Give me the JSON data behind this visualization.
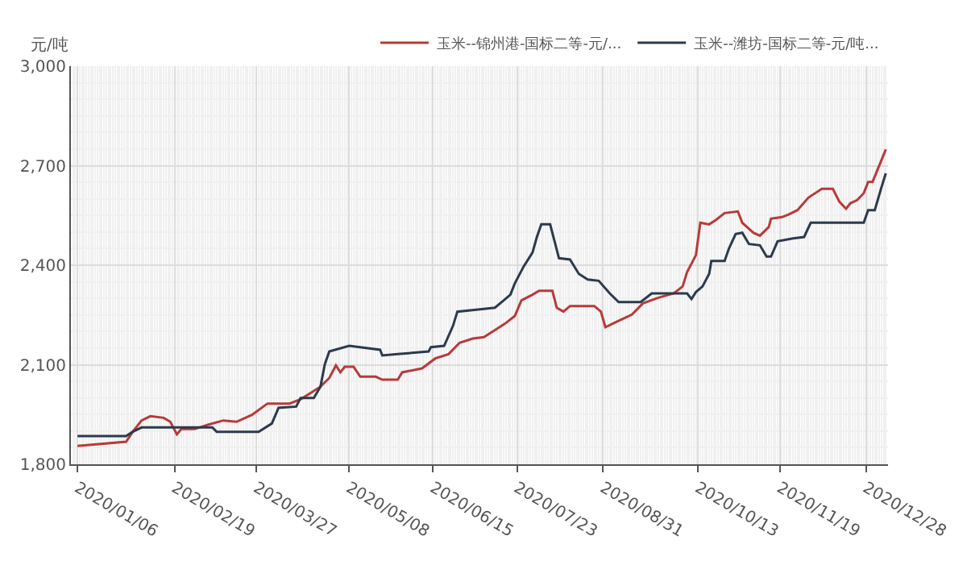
{
  "chart_data": {
    "type": "line",
    "ylabel": "元/吨",
    "xlim": [
      "2020-01-03",
      "2021-01-07"
    ],
    "xticks": [
      {
        "value": "2020-01-06",
        "label": "2020/01/06"
      },
      {
        "value": "2020-02-19",
        "label": "2020/02/19"
      },
      {
        "value": "2020-03-27",
        "label": "2020/03/27"
      },
      {
        "value": "2020-05-08",
        "label": "2020/05/08"
      },
      {
        "value": "2020-06-15",
        "label": "2020/06/15"
      },
      {
        "value": "2020-07-23",
        "label": "2020/07/23"
      },
      {
        "value": "2020-08-31",
        "label": "2020/08/31"
      },
      {
        "value": "2020-10-13",
        "label": "2020/10/13"
      },
      {
        "value": "2020-11-19",
        "label": "2020/11/19"
      },
      {
        "value": "2020-12-28",
        "label": "2020/12/28"
      }
    ],
    "ylim": [
      1800,
      3000
    ],
    "yticks": [
      {
        "value": 1800,
        "label": "1,800"
      },
      {
        "value": 2100,
        "label": "2,100"
      },
      {
        "value": 2400,
        "label": "2,400"
      },
      {
        "value": 2700,
        "label": "2,700"
      },
      {
        "value": 3000,
        "label": "3,000"
      }
    ],
    "grid": true,
    "legend": "top right",
    "series": [
      {
        "name": "玉米--锦州港-国标二等-元/...",
        "color": "#b83a3a",
        "x": [
          "2020-01-06",
          "2020-01-28",
          "2020-01-31",
          "2020-02-04",
          "2020-02-08",
          "2020-02-14",
          "2020-02-17",
          "2020-02-20",
          "2020-02-22",
          "2020-02-28",
          "2020-03-05",
          "2020-03-12",
          "2020-03-18",
          "2020-03-25",
          "2020-04-01",
          "2020-04-11",
          "2020-04-16",
          "2020-04-21",
          "2020-04-25",
          "2020-04-29",
          "2020-05-02",
          "2020-05-04",
          "2020-05-06",
          "2020-05-10",
          "2020-05-13",
          "2020-05-20",
          "2020-05-23",
          "2020-05-30",
          "2020-06-01",
          "2020-06-10",
          "2020-06-16",
          "2020-06-22",
          "2020-06-27",
          "2020-07-03",
          "2020-07-08",
          "2020-07-16",
          "2020-07-18",
          "2020-07-22",
          "2020-07-25",
          "2020-07-30",
          "2020-08-02",
          "2020-08-08",
          "2020-08-10",
          "2020-08-13",
          "2020-08-16",
          "2020-08-27",
          "2020-08-30",
          "2020-09-01",
          "2020-09-05",
          "2020-09-13",
          "2020-09-18",
          "2020-09-25",
          "2020-10-02",
          "2020-10-06",
          "2020-10-08",
          "2020-10-12",
          "2020-10-14",
          "2020-10-18",
          "2020-10-21",
          "2020-10-25",
          "2020-10-31",
          "2020-11-02",
          "2020-11-07",
          "2020-11-10",
          "2020-11-14",
          "2020-11-15",
          "2020-11-20",
          "2020-11-23",
          "2020-11-27",
          "2020-12-02",
          "2020-12-08",
          "2020-12-13",
          "2020-12-16",
          "2020-12-19",
          "2020-12-21",
          "2020-12-24",
          "2020-12-27",
          "2020-12-29",
          "2020-12-31",
          "2021-01-06"
        ],
        "values": [
          1855,
          1868,
          1898,
          1932,
          1945,
          1940,
          1928,
          1890,
          1906,
          1906,
          1919,
          1932,
          1928,
          1949,
          1983,
          1983,
          1996,
          2017,
          2034,
          2060,
          2098,
          2077,
          2094,
          2094,
          2064,
          2064,
          2055,
          2055,
          2077,
          2089,
          2119,
          2132,
          2166,
          2179,
          2183,
          2217,
          2226,
          2247,
          2294,
          2311,
          2323,
          2323,
          2272,
          2260,
          2277,
          2277,
          2260,
          2213,
          2226,
          2251,
          2285,
          2302,
          2315,
          2336,
          2379,
          2430,
          2528,
          2523,
          2536,
          2557,
          2562,
          2528,
          2498,
          2489,
          2515,
          2540,
          2545,
          2553,
          2566,
          2604,
          2630,
          2630,
          2591,
          2570,
          2587,
          2596,
          2617,
          2651,
          2651,
          2749
        ]
      },
      {
        "name": "玉米--潍坊-国标二等-元/吨...",
        "color": "#2c3a4c",
        "x": [
          "2020-01-06",
          "2020-01-28",
          "2020-01-31",
          "2020-02-04",
          "2020-03-07",
          "2020-03-09",
          "2020-03-28",
          "2020-04-03",
          "2020-04-06",
          "2020-04-14",
          "2020-04-16",
          "2020-04-22",
          "2020-04-25",
          "2020-04-27",
          "2020-04-29",
          "2020-05-08",
          "2020-05-22",
          "2020-05-23",
          "2020-05-30",
          "2020-06-13",
          "2020-06-14",
          "2020-06-20",
          "2020-06-24",
          "2020-06-26",
          "2020-07-08",
          "2020-07-13",
          "2020-07-17",
          "2020-07-20",
          "2020-07-22",
          "2020-07-26",
          "2020-07-30",
          "2020-08-01",
          "2020-08-03",
          "2020-08-07",
          "2020-08-11",
          "2020-08-16",
          "2020-08-20",
          "2020-08-24",
          "2020-08-29",
          "2020-09-03",
          "2020-09-07",
          "2020-09-17",
          "2020-09-22",
          "2020-10-08",
          "2020-10-10",
          "2020-10-12",
          "2020-10-15",
          "2020-10-18",
          "2020-10-19",
          "2020-10-25",
          "2020-10-27",
          "2020-10-30",
          "2020-11-02",
          "2020-11-05",
          "2020-11-10",
          "2020-11-13",
          "2020-11-15",
          "2020-11-18",
          "2020-11-25",
          "2020-11-30",
          "2020-12-03",
          "2020-12-27",
          "2020-12-29",
          "2021-01-01",
          "2021-01-04",
          "2021-01-06"
        ],
        "values": [
          1885,
          1885,
          1898,
          1911,
          1911,
          1898,
          1898,
          1923,
          1970,
          1974,
          2000,
          2000,
          2034,
          2102,
          2140,
          2157,
          2145,
          2128,
          2132,
          2140,
          2153,
          2157,
          2217,
          2260,
          2268,
          2272,
          2294,
          2311,
          2345,
          2396,
          2438,
          2485,
          2523,
          2523,
          2421,
          2417,
          2374,
          2357,
          2353,
          2315,
          2289,
          2289,
          2315,
          2315,
          2298,
          2319,
          2336,
          2374,
          2413,
          2413,
          2451,
          2494,
          2498,
          2464,
          2460,
          2426,
          2426,
          2472,
          2481,
          2485,
          2528,
          2528,
          2566,
          2566,
          2634,
          2677
        ]
      }
    ]
  }
}
